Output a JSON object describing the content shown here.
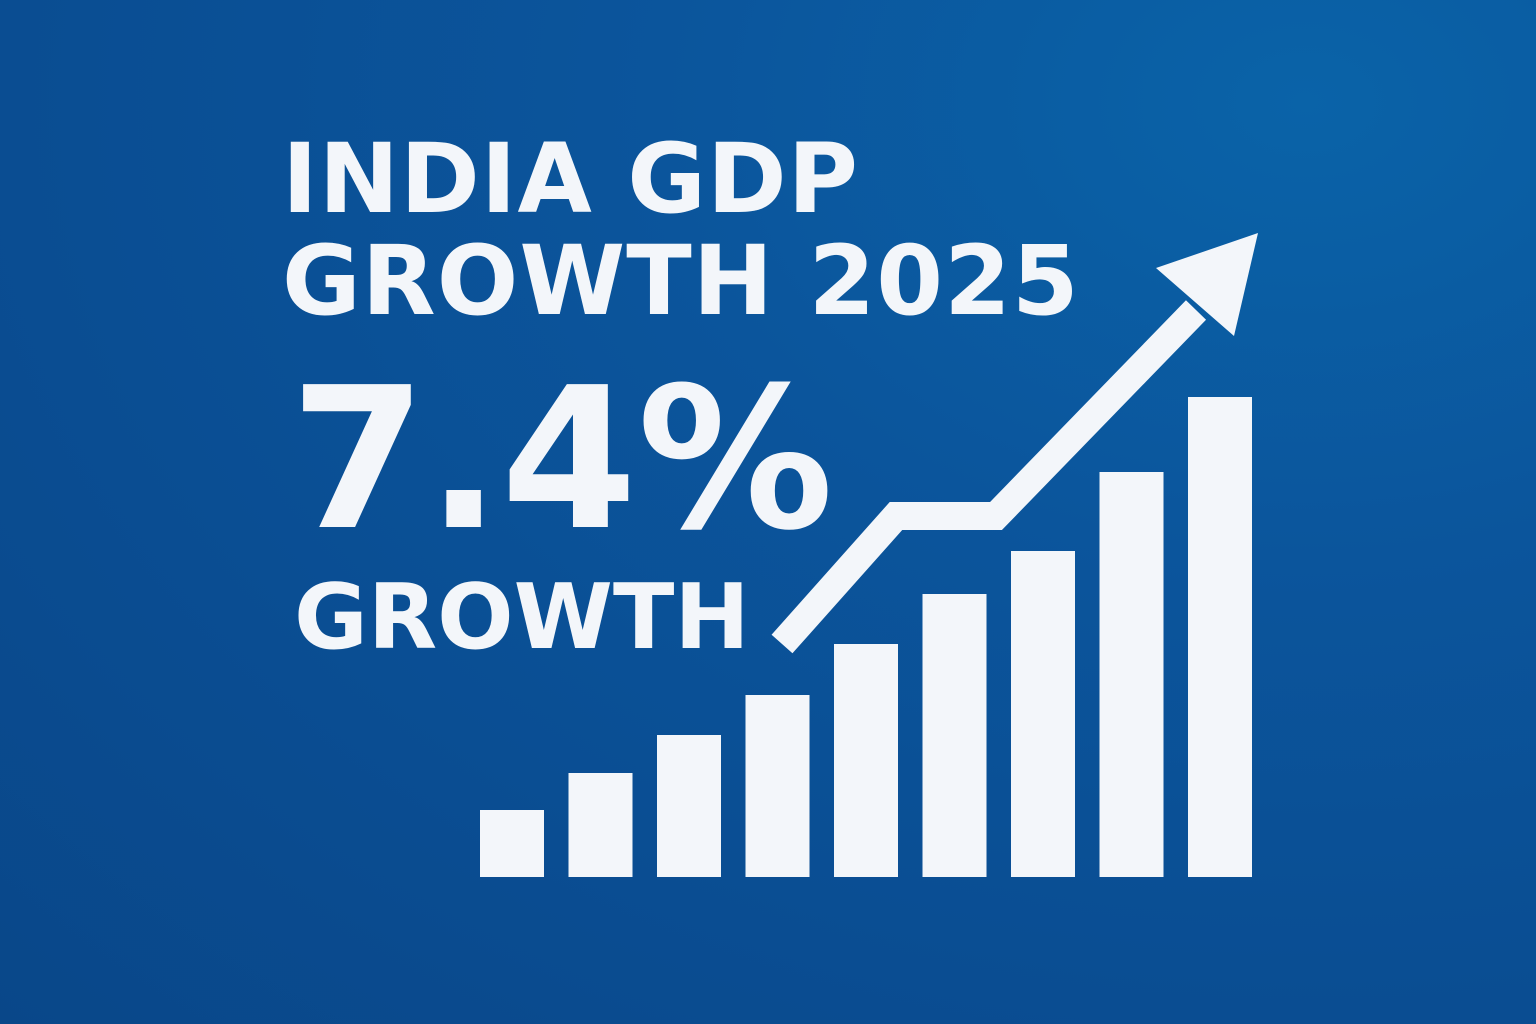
{
  "headline": {
    "line1": "INDIA GDP",
    "line2": "GROWTH 2025"
  },
  "highlight": {
    "value": "7.4%",
    "label": "GROWTH"
  },
  "graphic": {
    "icon": "rising-bar-chart-with-arrow-icon",
    "bars": [
      1,
      2,
      3,
      4,
      5,
      6,
      7,
      8,
      9
    ]
  },
  "colors": {
    "background": "#0b559c",
    "foreground": "#f3f6fa"
  }
}
